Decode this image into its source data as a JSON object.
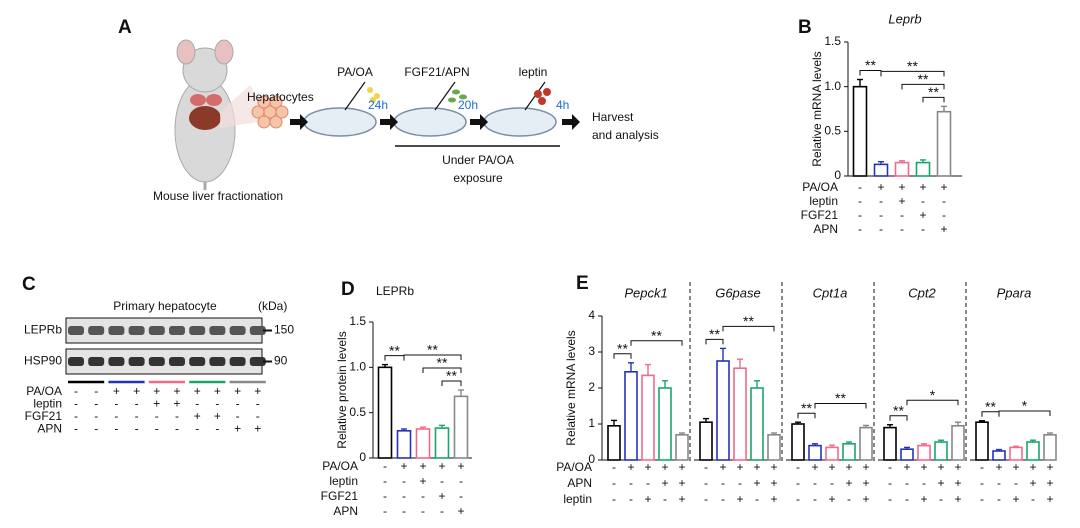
{
  "panel_a": {
    "label": "A",
    "cells": "Hepatocytes",
    "step1": "PA/OA",
    "time1": "24h",
    "step2": "FGF21/APN",
    "time2": "20h",
    "step3": "leptin",
    "time3": "4h",
    "harvest": [
      "Harvest",
      "and analysis"
    ],
    "exposure": [
      "Under PA/OA",
      "exposure"
    ],
    "caption": "Mouse liver fractionation"
  },
  "panel_c": {
    "label": "C",
    "title": "Primary hepatocyte",
    "unit": "(kDa)",
    "bands": [
      {
        "name": "LEPRb",
        "size": "150"
      },
      {
        "name": "HSP90",
        "size": "90"
      }
    ],
    "group_colors": [
      "#000000",
      "#2633b5",
      "#f06b8a",
      "#1aa66a",
      "#888888"
    ],
    "conditions": [
      {
        "label": "PA/OA",
        "marks": [
          "-",
          "-",
          "+",
          "+",
          "+",
          "+",
          "+",
          "+",
          "+",
          "+"
        ]
      },
      {
        "label": "leptin",
        "marks": [
          "-",
          "-",
          "-",
          "-",
          "+",
          "+",
          "-",
          "-",
          "-",
          "-"
        ]
      },
      {
        "label": "FGF21",
        "marks": [
          "-",
          "-",
          "-",
          "-",
          "-",
          "-",
          "+",
          "+",
          "-",
          "-"
        ]
      },
      {
        "label": "APN",
        "marks": [
          "-",
          "-",
          "-",
          "-",
          "-",
          "-",
          "-",
          "-",
          "+",
          "+"
        ]
      }
    ]
  },
  "chart_data": [
    {
      "type": "bar",
      "label": "B",
      "title": "Leprb",
      "ylabel": "Relative mRNA levels",
      "values": [
        1.0,
        0.13,
        0.15,
        0.15,
        0.72
      ],
      "errors": [
        0.08,
        0.03,
        0.02,
        0.03,
        0.06
      ],
      "colors": [
        "#000000",
        "#2633b5",
        "#f06b8a",
        "#1aa66a",
        "#888888"
      ],
      "ylim": [
        0,
        1.5
      ],
      "yticks": [
        0,
        0.5,
        {
          "value": 1,
          "label": "1.0"
        },
        1.5
      ],
      "annotations": [
        "**",
        "**",
        "**",
        "**"
      ],
      "conditions": [
        {
          "label": "PA/OA",
          "marks": [
            "-",
            "+",
            "+",
            "+",
            "+"
          ]
        },
        {
          "label": "leptin",
          "marks": [
            "-",
            "-",
            "+",
            "-",
            "-"
          ]
        },
        {
          "label": "FGF21",
          "marks": [
            "-",
            "-",
            "-",
            "+",
            "-"
          ]
        },
        {
          "label": "APN",
          "marks": [
            "-",
            "-",
            "-",
            "-",
            "+"
          ]
        }
      ]
    },
    {
      "type": "bar",
      "label": "D",
      "title": "LEPRb",
      "ylabel": "Relative protein levels",
      "values": [
        1.0,
        0.3,
        0.32,
        0.33,
        0.68
      ],
      "errors": [
        0.03,
        0.02,
        0.02,
        0.03,
        0.07
      ],
      "colors": [
        "#000000",
        "#2633b5",
        "#f06b8a",
        "#1aa66a",
        "#888888"
      ],
      "ylim": [
        0,
        1.5
      ],
      "yticks": [
        0,
        0.5,
        {
          "value": 1,
          "label": "1.0"
        },
        1.5
      ],
      "annotations": [
        "**",
        "**",
        "**",
        "**"
      ],
      "conditions": [
        {
          "label": "PA/OA",
          "marks": [
            "-",
            "+",
            "+",
            "+",
            "+"
          ]
        },
        {
          "label": "leptin",
          "marks": [
            "-",
            "-",
            "+",
            "-",
            "-"
          ]
        },
        {
          "label": "FGF21",
          "marks": [
            "-",
            "-",
            "-",
            "+",
            "-"
          ]
        },
        {
          "label": "APN",
          "marks": [
            "-",
            "-",
            "-",
            "-",
            "+"
          ]
        }
      ]
    },
    {
      "type": "bar",
      "label": "E",
      "ylabel": "Relative mRNA levels",
      "ylim": [
        0,
        4
      ],
      "yticks": [
        0,
        1,
        2,
        3,
        4
      ],
      "colors": [
        "#000000",
        "#2633b5",
        "#f06b8a",
        "#1aa66a",
        "#888888"
      ],
      "panels": [
        {
          "title": "Pepck1",
          "values": [
            0.95,
            2.45,
            2.35,
            2.0,
            0.7
          ],
          "errors": [
            0.15,
            0.25,
            0.3,
            0.2,
            0.05
          ],
          "annotations": [
            "**",
            "**"
          ]
        },
        {
          "title": "G6pase",
          "values": [
            1.05,
            2.75,
            2.55,
            2.0,
            0.7
          ],
          "errors": [
            0.1,
            0.35,
            0.25,
            0.2,
            0.05
          ],
          "annotations": [
            "**",
            "**"
          ]
        },
        {
          "title": "Cpt1a",
          "values": [
            1.0,
            0.4,
            0.35,
            0.45,
            0.9
          ],
          "errors": [
            0.05,
            0.05,
            0.06,
            0.05,
            0.06
          ],
          "annotations": [
            "**",
            "**"
          ]
        },
        {
          "title": "Cpt2",
          "values": [
            0.9,
            0.3,
            0.4,
            0.5,
            0.95
          ],
          "errors": [
            0.08,
            0.05,
            0.05,
            0.05,
            0.1
          ],
          "annotations": [
            "**",
            "*"
          ]
        },
        {
          "title": "Ppara",
          "values": [
            1.05,
            0.25,
            0.35,
            0.5,
            0.7
          ],
          "errors": [
            0.04,
            0.04,
            0.03,
            0.05,
            0.05
          ],
          "annotations": [
            "**",
            "*"
          ]
        }
      ],
      "conditions": [
        {
          "label": "PA/OA",
          "marks": [
            "-",
            "+",
            "+",
            "+",
            "+",
            "-",
            "+",
            "+",
            "+",
            "+",
            "-",
            "+",
            "+",
            "+",
            "+",
            "-",
            "+",
            "+",
            "+",
            "+",
            "-",
            "+",
            "+",
            "+",
            "+"
          ]
        },
        {
          "label": "APN",
          "marks": [
            "-",
            "-",
            "-",
            "+",
            "+",
            "-",
            "-",
            "-",
            "+",
            "+",
            "-",
            "-",
            "-",
            "+",
            "+",
            "-",
            "-",
            "-",
            "+",
            "+",
            "-",
            "-",
            "-",
            "+",
            "+"
          ]
        },
        {
          "label": "leptin",
          "marks": [
            "-",
            "-",
            "+",
            "-",
            "+",
            "-",
            "-",
            "+",
            "-",
            "+",
            "-",
            "-",
            "+",
            "-",
            "+",
            "-",
            "-",
            "+",
            "-",
            "+",
            "-",
            "-",
            "+",
            "-",
            "+"
          ]
        }
      ]
    }
  ]
}
